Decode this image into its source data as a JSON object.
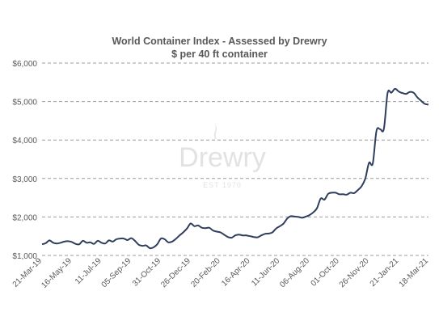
{
  "chart_data": {
    "type": "line",
    "title": "World Container Index - Assessed by Drewry",
    "subtitle": "$ per 40 ft container",
    "xlabel": "",
    "ylabel": "",
    "ylim": [
      1000,
      6000
    ],
    "y_ticks": [
      1000,
      2000,
      3000,
      4000,
      5000,
      6000
    ],
    "y_tick_labels": [
      "$1,000",
      "$2,000",
      "$3,000",
      "$4,000",
      "$5,000",
      "$6,000"
    ],
    "grid": "horizontal dashed",
    "watermark": {
      "text": "Drewry",
      "subtext": "EST 1970"
    },
    "line_color": "#2f3e5c",
    "x_tick_labels": [
      "21-Mar-19",
      "16-May-19",
      "11-Jul-19",
      "05-Sep-19",
      "31-Oct-19",
      "26-Dec-19",
      "20-Feb-20",
      "16-Apr-20",
      "11-Jun-20",
      "06-Aug-20",
      "01-Oct-20",
      "26-Nov-20",
      "21-Jan-21",
      "18-Mar-21"
    ],
    "x": [
      "21-Mar-19",
      "28-Mar-19",
      "04-Apr-19",
      "11-Apr-19",
      "18-Apr-19",
      "25-Apr-19",
      "02-May-19",
      "09-May-19",
      "16-May-19",
      "23-May-19",
      "30-May-19",
      "06-Jun-19",
      "13-Jun-19",
      "20-Jun-19",
      "27-Jun-19",
      "04-Jul-19",
      "11-Jul-19",
      "18-Jul-19",
      "25-Jul-19",
      "01-Aug-19",
      "08-Aug-19",
      "15-Aug-19",
      "22-Aug-19",
      "29-Aug-19",
      "05-Sep-19",
      "12-Sep-19",
      "19-Sep-19",
      "26-Sep-19",
      "03-Oct-19",
      "10-Oct-19",
      "17-Oct-19",
      "24-Oct-19",
      "31-Oct-19",
      "07-Nov-19",
      "14-Nov-19",
      "21-Nov-19",
      "28-Nov-19",
      "05-Dec-19",
      "12-Dec-19",
      "19-Dec-19",
      "26-Dec-19",
      "02-Jan-20",
      "09-Jan-20",
      "16-Jan-20",
      "23-Jan-20",
      "30-Jan-20",
      "06-Feb-20",
      "13-Feb-20",
      "20-Feb-20",
      "27-Feb-20",
      "05-Mar-20",
      "12-Mar-20",
      "19-Mar-20",
      "26-Mar-20",
      "02-Apr-20",
      "09-Apr-20",
      "16-Apr-20",
      "23-Apr-20",
      "30-Apr-20",
      "07-May-20",
      "14-May-20",
      "21-May-20",
      "28-May-20",
      "04-Jun-20",
      "11-Jun-20",
      "18-Jun-20",
      "25-Jun-20",
      "02-Jul-20",
      "09-Jul-20",
      "16-Jul-20",
      "23-Jul-20",
      "30-Jul-20",
      "06-Aug-20",
      "13-Aug-20",
      "20-Aug-20",
      "27-Aug-20",
      "03-Sep-20",
      "10-Sep-20",
      "17-Sep-20",
      "24-Sep-20",
      "01-Oct-20",
      "08-Oct-20",
      "15-Oct-20",
      "22-Oct-20",
      "29-Oct-20",
      "05-Nov-20",
      "12-Nov-20",
      "19-Nov-20",
      "26-Nov-20",
      "03-Dec-20",
      "10-Dec-20",
      "17-Dec-20",
      "24-Dec-20",
      "31-Dec-20",
      "07-Jan-21",
      "14-Jan-21",
      "21-Jan-21",
      "28-Jan-21",
      "04-Feb-21",
      "11-Feb-21",
      "18-Feb-21",
      "25-Feb-21",
      "04-Mar-21",
      "11-Mar-21",
      "18-Mar-21"
    ],
    "series": [
      {
        "values": [
          1290,
          1320,
          1390,
          1330,
          1310,
          1330,
          1360,
          1370,
          1350,
          1300,
          1290,
          1380,
          1330,
          1340,
          1300,
          1380,
          1330,
          1310,
          1390,
          1360,
          1420,
          1440,
          1440,
          1400,
          1450,
          1380,
          1280,
          1250,
          1260,
          1190,
          1210,
          1290,
          1440,
          1420,
          1340,
          1360,
          1430,
          1520,
          1600,
          1700,
          1830,
          1760,
          1780,
          1720,
          1710,
          1720,
          1650,
          1620,
          1600,
          1540,
          1480,
          1460,
          1520,
          1540,
          1520,
          1520,
          1500,
          1480,
          1470,
          1520,
          1560,
          1570,
          1600,
          1700,
          1760,
          1830,
          1960,
          2020,
          2010,
          2000,
          1980,
          2010,
          2050,
          2120,
          2230,
          2480,
          2450,
          2600,
          2630,
          2630,
          2590,
          2590,
          2580,
          2630,
          2620,
          2700,
          2800,
          3000,
          3410,
          3390,
          4240,
          4280,
          4290,
          5220,
          5230,
          5330,
          5260,
          5220,
          5200,
          5250,
          5230,
          5110,
          5020,
          4940,
          4920
        ]
      }
    ]
  }
}
